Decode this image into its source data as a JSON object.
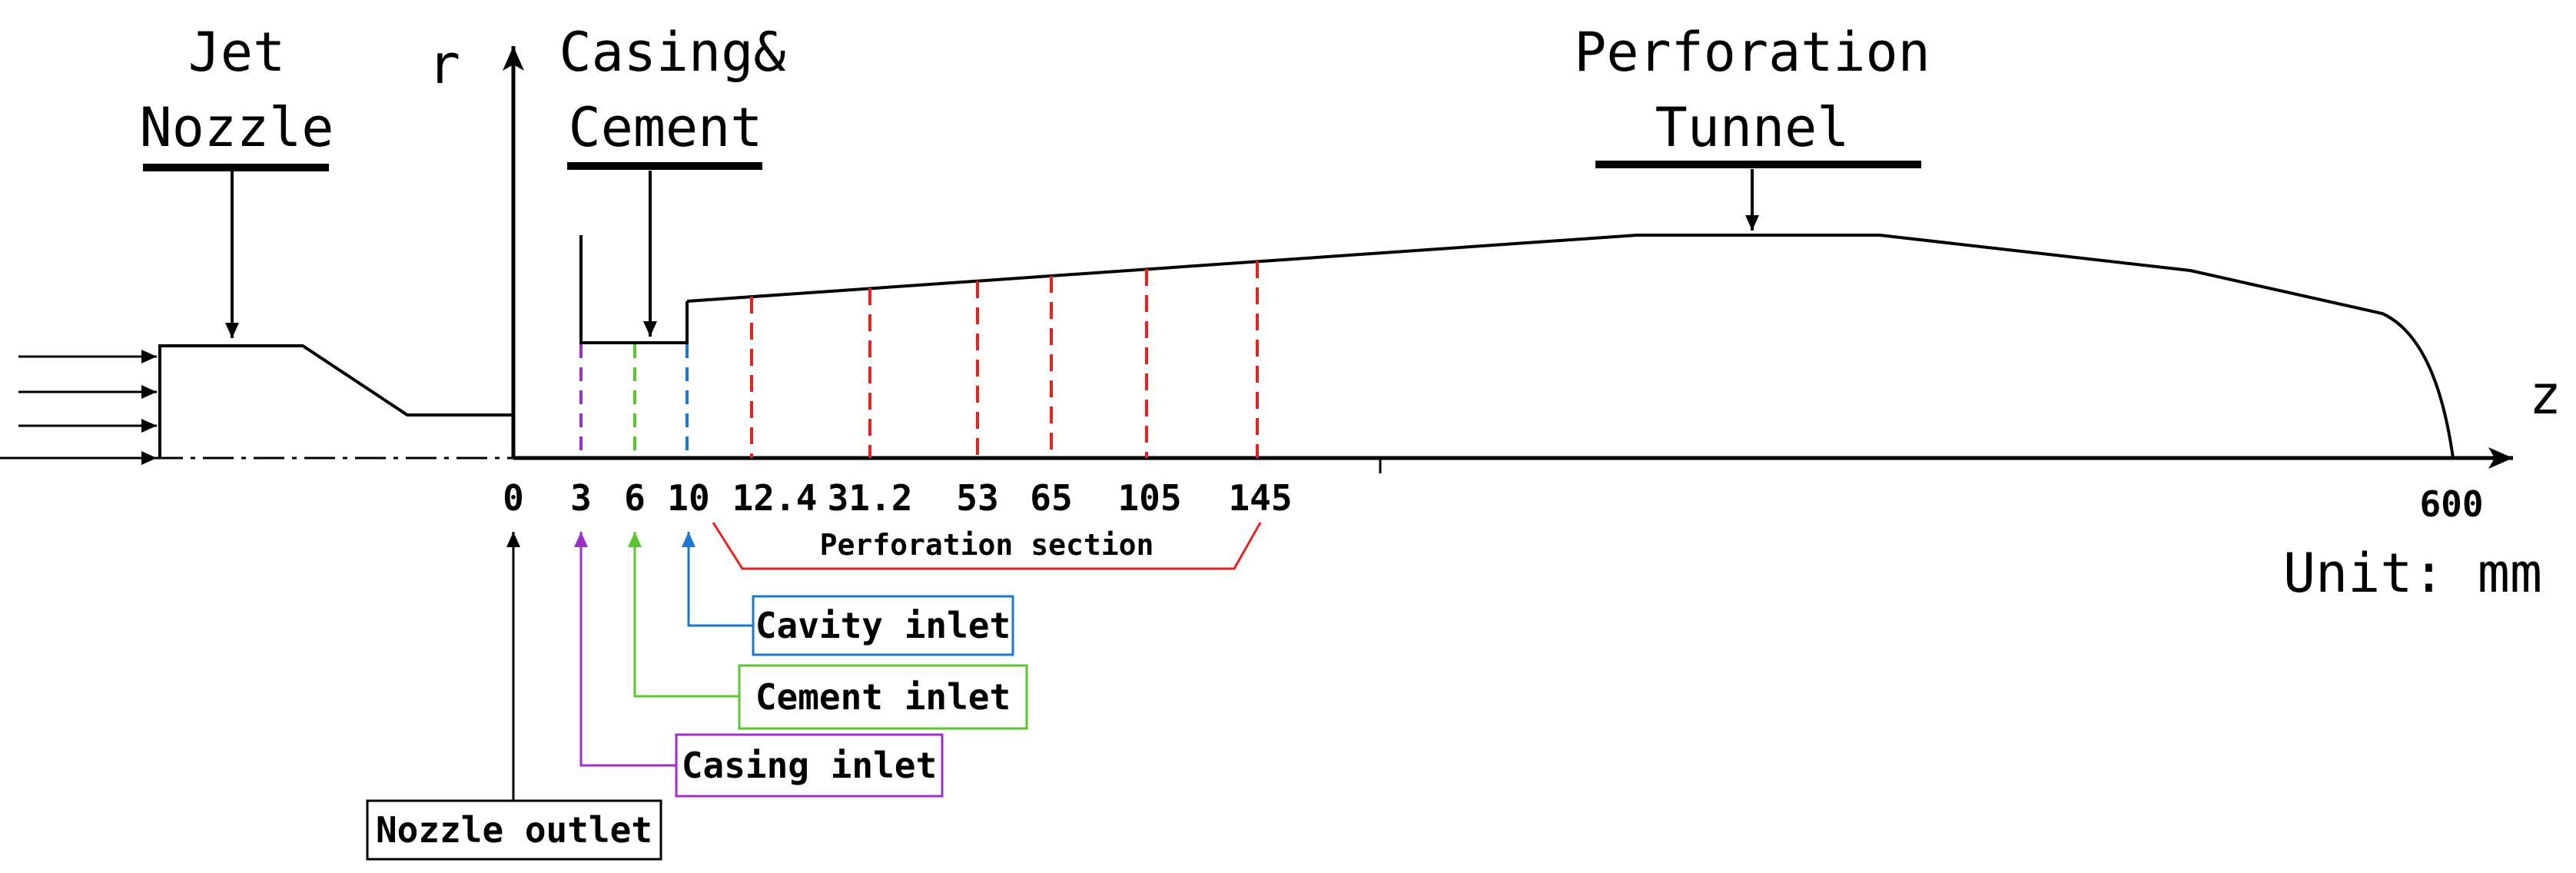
{
  "labels": {
    "jet_nozzle_line1": "Jet",
    "jet_nozzle_line2": "Nozzle",
    "casing_cement_line1": "Casing&",
    "casing_cement_line2": "Cement",
    "perforation_tunnel_line1": "Perforation",
    "perforation_tunnel_line2": "Tunnel",
    "r_axis": "r",
    "z_axis": "z",
    "unit": "Unit: mm",
    "perforation_section": "Perforation section"
  },
  "ticks": [
    "0",
    "3",
    "6",
    "10",
    "12.4",
    "31.2",
    "53",
    "65",
    "105",
    "145",
    "600"
  ],
  "callouts": {
    "cavity_inlet": "Cavity inlet",
    "cement_inlet": "Cement inlet",
    "casing_inlet": "Casing inlet",
    "nozzle_outlet": "Nozzle outlet"
  },
  "colors": {
    "casing": "#9b30c8",
    "cement": "#5ac82c",
    "cavity": "#1a78d0",
    "perforation": "#e8201e"
  }
}
